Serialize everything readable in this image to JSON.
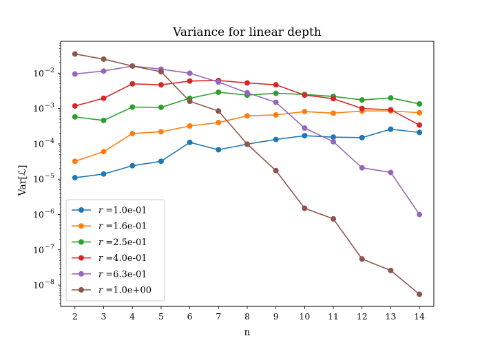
{
  "chart_data": {
    "type": "line",
    "title": "Variance for linear depth",
    "xlabel": "n",
    "ylabel": "Var[ℒ]",
    "x": [
      2,
      3,
      4,
      5,
      6,
      7,
      8,
      9,
      10,
      11,
      12,
      13,
      14
    ],
    "xlim": [
      1.5,
      14.5
    ],
    "ylim": [
      2.5e-09,
      0.08
    ],
    "y_scale": "log",
    "y_ticks": [
      {
        "value": 1e-08,
        "mantissa": "10",
        "exp": "−8"
      },
      {
        "value": 1e-07,
        "mantissa": "10",
        "exp": "−7"
      },
      {
        "value": 1e-06,
        "mantissa": "10",
        "exp": "−6"
      },
      {
        "value": 1e-05,
        "mantissa": "10",
        "exp": "−5"
      },
      {
        "value": 0.0001,
        "mantissa": "10",
        "exp": "−4"
      },
      {
        "value": 0.001,
        "mantissa": "10",
        "exp": "−3"
      },
      {
        "value": 0.01,
        "mantissa": "10",
        "exp": "−2"
      }
    ],
    "grid": false,
    "legend_position": "lower-left",
    "series": [
      {
        "name": "r =1.0e-01",
        "color": "#1f77b4",
        "values": [
          1.1e-05,
          1.4e-05,
          2.4e-05,
          3.2e-05,
          0.00011,
          6.8e-05,
          9.8e-05,
          0.000133,
          0.00017,
          0.000155,
          0.00015,
          0.00026,
          0.00021
        ]
      },
      {
        "name": "r =1.6e-01",
        "color": "#ff7f0e",
        "values": [
          3.2e-05,
          6e-05,
          0.000195,
          0.00022,
          0.00032,
          0.0004,
          0.00062,
          0.00066,
          0.00082,
          0.00074,
          0.00085,
          0.00086,
          0.00076
        ]
      },
      {
        "name": "r =2.5e-01",
        "color": "#2ca02c",
        "values": [
          0.00058,
          0.00046,
          0.0011,
          0.00108,
          0.00195,
          0.0029,
          0.0024,
          0.0027,
          0.0025,
          0.0022,
          0.00175,
          0.002,
          0.00135
        ]
      },
      {
        "name": "r =4.0e-01",
        "color": "#d62728",
        "values": [
          0.00118,
          0.00195,
          0.005,
          0.0047,
          0.006,
          0.0062,
          0.0053,
          0.0047,
          0.0024,
          0.0019,
          0.001,
          0.00092,
          0.00034
        ]
      },
      {
        "name": "r =6.3e-01",
        "color": "#9467bd",
        "values": [
          0.0095,
          0.0115,
          0.016,
          0.013,
          0.01,
          0.0056,
          0.0028,
          0.0015,
          0.00028,
          0.000115,
          2.1e-05,
          1.55e-05,
          1e-06
        ]
      },
      {
        "name": "r =1.0e+00",
        "color": "#8c564b",
        "values": [
          0.035,
          0.025,
          0.016,
          0.011,
          0.0016,
          0.00085,
          9.8e-05,
          1.75e-05,
          1.5e-06,
          7.5e-07,
          5.5e-08,
          2.6e-08,
          5.5e-09
        ]
      }
    ]
  }
}
